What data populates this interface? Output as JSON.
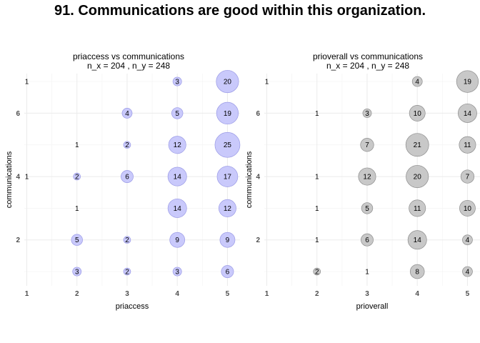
{
  "title": "91. Communications are good within this organization.",
  "colors": {
    "panel1_fill": "#c9c9fb",
    "panel1_stroke": "#9a9ae6",
    "panel2_fill": "#c8c8c8",
    "panel2_stroke": "#8c8c8c"
  },
  "chart_data": [
    {
      "type": "scatter",
      "title": "priaccess vs communications",
      "subtitle": "n_x = 204 , n_y = 248",
      "xlabel": "priaccess",
      "ylabel": "communications",
      "x_ticks": [
        "1",
        "2",
        "3",
        "4",
        "5"
      ],
      "y_ticks": [
        "2",
        "4",
        "6"
      ],
      "xlim": [
        0.95,
        5.25
      ],
      "ylim": [
        0.55,
        7.25
      ],
      "grid": true,
      "points": [
        {
          "x": 1,
          "y": 7,
          "n": 1
        },
        {
          "x": 4,
          "y": 7,
          "n": 3
        },
        {
          "x": 5,
          "y": 7,
          "n": 20
        },
        {
          "x": 3,
          "y": 6,
          "n": 4
        },
        {
          "x": 4,
          "y": 6,
          "n": 5
        },
        {
          "x": 5,
          "y": 6,
          "n": 19
        },
        {
          "x": 2,
          "y": 5,
          "n": 1
        },
        {
          "x": 3,
          "y": 5,
          "n": 2
        },
        {
          "x": 4,
          "y": 5,
          "n": 12
        },
        {
          "x": 5,
          "y": 5,
          "n": 25
        },
        {
          "x": 1,
          "y": 4,
          "n": 1
        },
        {
          "x": 2,
          "y": 4,
          "n": 2
        },
        {
          "x": 3,
          "y": 4,
          "n": 6
        },
        {
          "x": 4,
          "y": 4,
          "n": 14
        },
        {
          "x": 5,
          "y": 4,
          "n": 17
        },
        {
          "x": 2,
          "y": 3,
          "n": 1
        },
        {
          "x": 4,
          "y": 3,
          "n": 14
        },
        {
          "x": 5,
          "y": 3,
          "n": 12
        },
        {
          "x": 2,
          "y": 2,
          "n": 5
        },
        {
          "x": 3,
          "y": 2,
          "n": 2
        },
        {
          "x": 4,
          "y": 2,
          "n": 9
        },
        {
          "x": 5,
          "y": 2,
          "n": 9
        },
        {
          "x": 2,
          "y": 1,
          "n": 3
        },
        {
          "x": 3,
          "y": 1,
          "n": 2
        },
        {
          "x": 4,
          "y": 1,
          "n": 3
        },
        {
          "x": 5,
          "y": 1,
          "n": 6
        }
      ]
    },
    {
      "type": "scatter",
      "title": "prioverall vs communications",
      "subtitle": "n_x = 204 , n_y = 248",
      "xlabel": "prioverall",
      "ylabel": "communications",
      "x_ticks": [
        "1",
        "2",
        "3",
        "4",
        "5"
      ],
      "y_ticks": [
        "2",
        "4",
        "6"
      ],
      "xlim": [
        0.95,
        5.25
      ],
      "ylim": [
        0.55,
        7.25
      ],
      "grid": true,
      "points": [
        {
          "x": 1,
          "y": 7,
          "n": 1
        },
        {
          "x": 4,
          "y": 7,
          "n": 4
        },
        {
          "x": 5,
          "y": 7,
          "n": 19
        },
        {
          "x": 2,
          "y": 6,
          "n": 1
        },
        {
          "x": 3,
          "y": 6,
          "n": 3
        },
        {
          "x": 4,
          "y": 6,
          "n": 10
        },
        {
          "x": 5,
          "y": 6,
          "n": 14
        },
        {
          "x": 3,
          "y": 5,
          "n": 7
        },
        {
          "x": 4,
          "y": 5,
          "n": 21
        },
        {
          "x": 5,
          "y": 5,
          "n": 11
        },
        {
          "x": 2,
          "y": 4,
          "n": 1
        },
        {
          "x": 3,
          "y": 4,
          "n": 12
        },
        {
          "x": 4,
          "y": 4,
          "n": 20
        },
        {
          "x": 5,
          "y": 4,
          "n": 7
        },
        {
          "x": 2,
          "y": 3,
          "n": 1
        },
        {
          "x": 3,
          "y": 3,
          "n": 5
        },
        {
          "x": 4,
          "y": 3,
          "n": 11
        },
        {
          "x": 5,
          "y": 3,
          "n": 10
        },
        {
          "x": 2,
          "y": 2,
          "n": 1
        },
        {
          "x": 3,
          "y": 2,
          "n": 6
        },
        {
          "x": 4,
          "y": 2,
          "n": 14
        },
        {
          "x": 5,
          "y": 2,
          "n": 4
        },
        {
          "x": 2,
          "y": 1,
          "n": 2
        },
        {
          "x": 3,
          "y": 1,
          "n": 1
        },
        {
          "x": 4,
          "y": 1,
          "n": 8
        },
        {
          "x": 5,
          "y": 1,
          "n": 4
        }
      ]
    }
  ]
}
